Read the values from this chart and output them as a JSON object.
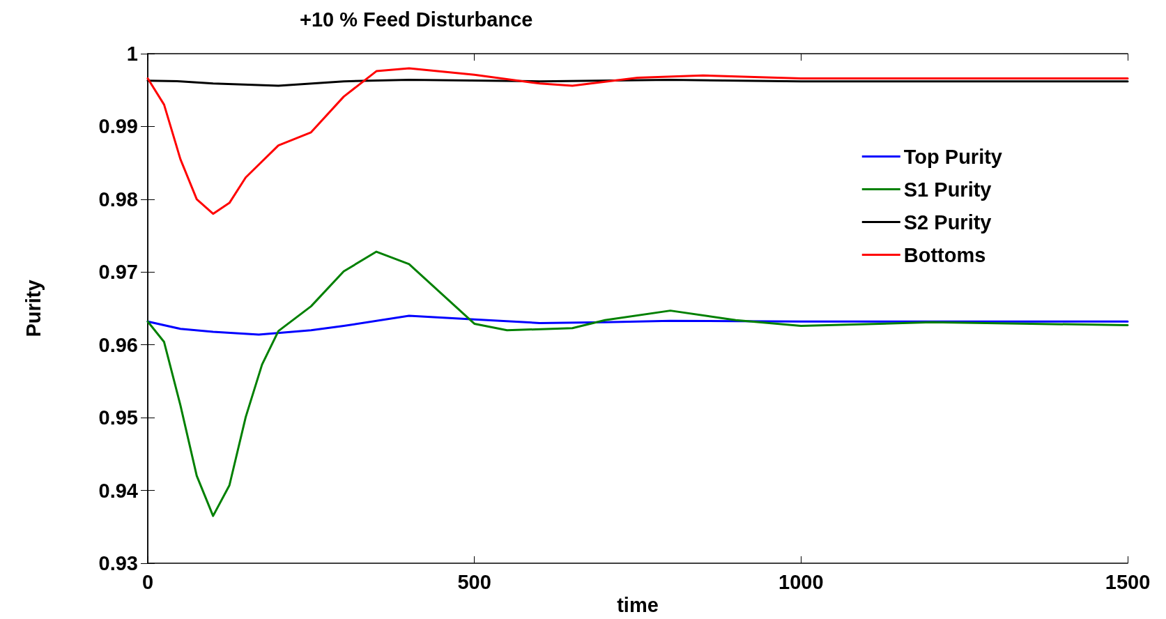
{
  "chart_data": {
    "type": "line",
    "title": "+10 % Feed Disturbance",
    "xlabel": "time",
    "ylabel": "Purity",
    "xlim": [
      0,
      1500
    ],
    "xticks": [
      0,
      500,
      1000,
      1500
    ],
    "ylim": [
      0.93,
      1
    ],
    "yticks": [
      0.93,
      0.94,
      0.95,
      0.96,
      0.97,
      0.98,
      0.99,
      1
    ],
    "grid": false,
    "legend": "top right",
    "marker": "none",
    "line_style": "solid",
    "series": [
      {
        "name": "Top Purity",
        "color": "#0000ff",
        "x": [
          0,
          50,
          100,
          170,
          250,
          300,
          400,
          500,
          600,
          700,
          800,
          1000,
          1200,
          1500
        ],
        "values": [
          0.9632,
          0.9622,
          0.9618,
          0.9614,
          0.962,
          0.9626,
          0.964,
          0.9635,
          0.963,
          0.9631,
          0.9633,
          0.9632,
          0.9632,
          0.9632
        ]
      },
      {
        "name": "S1 Purity",
        "color": "#008000",
        "x": [
          0,
          25,
          50,
          75,
          100,
          125,
          150,
          175,
          200,
          250,
          300,
          350,
          400,
          450,
          500,
          550,
          650,
          700,
          800,
          900,
          1000,
          1200,
          1500
        ],
        "values": [
          0.9632,
          0.9604,
          0.9517,
          0.942,
          0.9365,
          0.9407,
          0.9501,
          0.9573,
          0.9619,
          0.9653,
          0.9701,
          0.9728,
          0.9711,
          0.967,
          0.9629,
          0.962,
          0.9623,
          0.9634,
          0.9647,
          0.9634,
          0.9626,
          0.9631,
          0.9627
        ]
      },
      {
        "name": "S2 Purity",
        "color": "#000000",
        "x": [
          0,
          50,
          100,
          200,
          300,
          400,
          600,
          800,
          1000,
          1500
        ],
        "values": [
          0.9963,
          0.9962,
          0.9959,
          0.9956,
          0.9962,
          0.9964,
          0.9962,
          0.9964,
          0.9962,
          0.9962
        ]
      },
      {
        "name": "Bottoms",
        "color": "#ff0000",
        "x": [
          0,
          25,
          50,
          75,
          100,
          125,
          150,
          200,
          250,
          300,
          350,
          400,
          500,
          600,
          650,
          750,
          850,
          1000,
          1500
        ],
        "values": [
          0.9966,
          0.993,
          0.9855,
          0.98,
          0.978,
          0.9795,
          0.983,
          0.9874,
          0.9892,
          0.9941,
          0.9976,
          0.998,
          0.9971,
          0.9959,
          0.9956,
          0.9967,
          0.997,
          0.9966,
          0.9966
        ]
      }
    ]
  }
}
